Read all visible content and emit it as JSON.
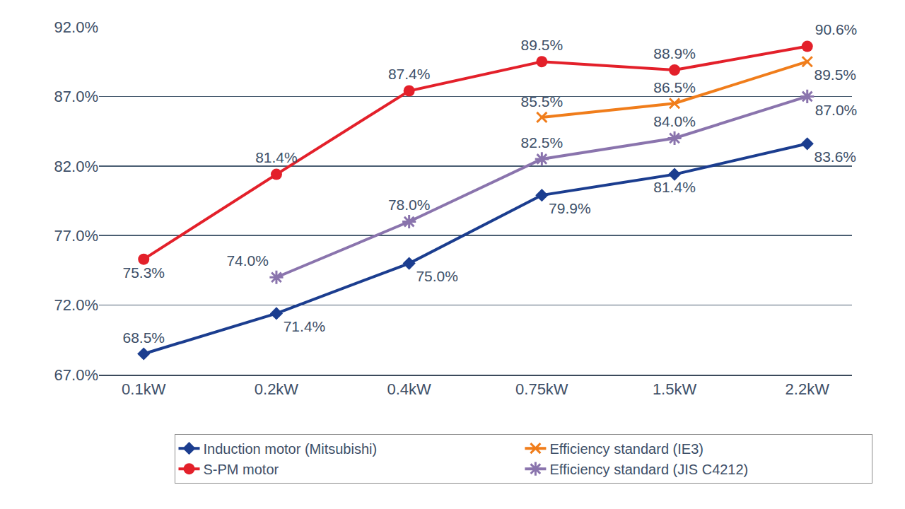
{
  "chart_data": {
    "type": "line",
    "categories": [
      "0.1kW",
      "0.2kW",
      "0.4kW",
      "0.75kW",
      "1.5kW",
      "2.2kW"
    ],
    "series": [
      {
        "name": "Induction motor (Mitsubishi)",
        "color": "#1b3d8f",
        "marker": "diamond",
        "values": [
          68.5,
          71.4,
          75.0,
          79.9,
          81.4,
          83.6
        ],
        "value_labels": [
          "68.5%",
          "71.4%",
          "75.0%",
          "79.9%",
          "81.4%",
          "83.6%"
        ]
      },
      {
        "name": "Efficiency standard (IE3)",
        "color": "#f07d1b",
        "marker": "x",
        "values": [
          null,
          null,
          null,
          85.5,
          86.5,
          89.5
        ],
        "value_labels": [
          null,
          null,
          null,
          "85.5%",
          "86.5%",
          "89.5%"
        ]
      },
      {
        "name": "S-PM motor",
        "color": "#e3202a",
        "marker": "circle",
        "values": [
          75.3,
          81.4,
          87.4,
          89.5,
          88.9,
          90.6
        ],
        "value_labels": [
          "75.3%",
          "81.4%",
          "87.4%",
          "89.5%",
          "88.9%",
          "90.6%"
        ]
      },
      {
        "name": "Efficiency standard (JIS C4212)",
        "color": "#8a74ad",
        "marker": "asterisk",
        "values": [
          null,
          74.0,
          78.0,
          82.5,
          84.0,
          87.0
        ],
        "value_labels": [
          null,
          "74.0%",
          "78.0%",
          "82.5%",
          "84.0%",
          "87.0%"
        ]
      }
    ],
    "ylim": [
      67,
      92
    ],
    "yticks": [
      {
        "value": 67,
        "label": "67.0%"
      },
      {
        "value": 72,
        "label": "72.0%"
      },
      {
        "value": 77,
        "label": "77.0%"
      },
      {
        "value": 82,
        "label": "82.0%"
      },
      {
        "value": 87,
        "label": "87.0%"
      },
      {
        "value": 92,
        "label": "92.0%"
      }
    ],
    "grid": true,
    "data_labels": true,
    "legend": "bottom"
  }
}
